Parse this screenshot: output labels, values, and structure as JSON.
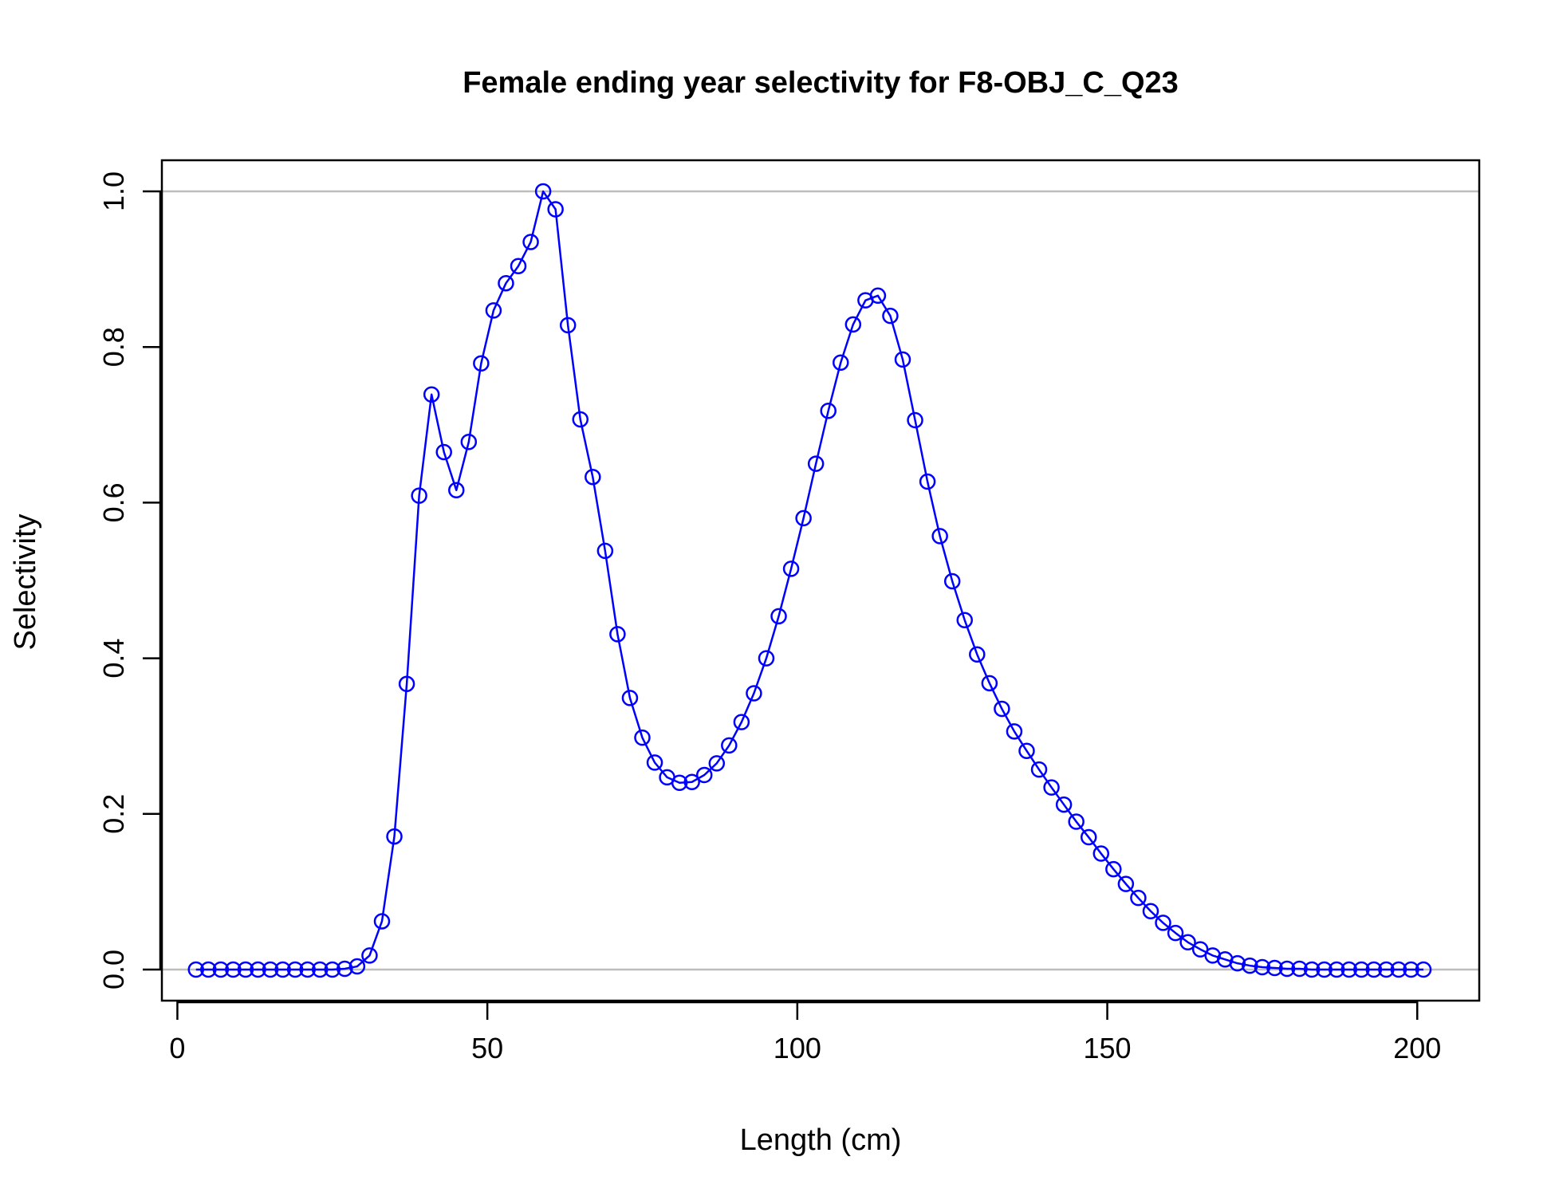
{
  "chart_data": {
    "type": "line",
    "title": "Female ending year selectivity for F8-OBJ_C_Q23",
    "xlabel": "Length (cm)",
    "ylabel": "Selectivity",
    "xlim": [
      -2.5,
      210
    ],
    "ylim": [
      -0.04,
      1.04
    ],
    "x_ticks": [
      0,
      50,
      100,
      150,
      200
    ],
    "y_ticks": [
      0.0,
      0.2,
      0.4,
      0.6,
      0.8,
      1.0
    ],
    "x_tick_labels": [
      "0",
      "50",
      "100",
      "150",
      "200"
    ],
    "y_tick_labels": [
      "0.0",
      "0.2",
      "0.4",
      "0.6",
      "0.8",
      "1.0"
    ],
    "reference_lines": [
      0,
      1
    ],
    "marker": "open-circle",
    "colors": {
      "series": "#0000ff",
      "reference": "#bebebe",
      "frame": "#000000"
    },
    "series": [
      {
        "x": [
          3,
          5,
          7,
          9,
          11,
          13,
          15,
          17,
          19,
          21,
          23,
          25,
          27,
          29,
          31,
          33,
          35,
          37,
          39,
          41,
          43,
          45,
          47,
          49,
          51,
          53,
          55,
          57,
          59,
          61,
          63,
          65,
          67,
          69,
          71,
          73,
          75,
          77,
          79,
          81,
          83,
          85,
          87,
          89,
          91,
          93,
          95,
          97,
          99,
          101,
          103,
          105,
          107,
          109,
          111,
          113,
          115,
          117,
          119,
          121,
          123,
          125,
          127,
          129,
          131,
          133,
          135,
          137,
          139,
          141,
          143,
          145,
          147,
          149,
          151,
          153,
          155,
          157,
          159,
          161,
          163,
          165,
          167,
          169,
          171,
          173,
          175,
          177,
          179,
          181,
          183,
          185,
          187,
          189,
          191,
          193,
          195,
          197,
          199,
          201
        ],
        "values": [
          0,
          0,
          0,
          0,
          0,
          0,
          0,
          0,
          0,
          0,
          0,
          0,
          0.001,
          0.004,
          0.018,
          0.062,
          0.171,
          0.367,
          0.609,
          0.739,
          0.665,
          0.616,
          0.678,
          0.779,
          0.847,
          0.882,
          0.904,
          0.935,
          1.0,
          0.977,
          0.828,
          0.707,
          0.633,
          0.538,
          0.431,
          0.349,
          0.298,
          0.266,
          0.247,
          0.24,
          0.241,
          0.25,
          0.265,
          0.288,
          0.318,
          0.355,
          0.4,
          0.454,
          0.515,
          0.58,
          0.65,
          0.718,
          0.78,
          0.829,
          0.86,
          0.866,
          0.84,
          0.784,
          0.706,
          0.627,
          0.557,
          0.499,
          0.449,
          0.405,
          0.368,
          0.335,
          0.306,
          0.281,
          0.257,
          0.234,
          0.212,
          0.19,
          0.17,
          0.149,
          0.129,
          0.11,
          0.092,
          0.075,
          0.06,
          0.047,
          0.035,
          0.026,
          0.018,
          0.013,
          0.008,
          0.005,
          0.003,
          0.002,
          0.001,
          0.001,
          0,
          0,
          0,
          0,
          0,
          0,
          0,
          0,
          0,
          0
        ]
      }
    ]
  }
}
